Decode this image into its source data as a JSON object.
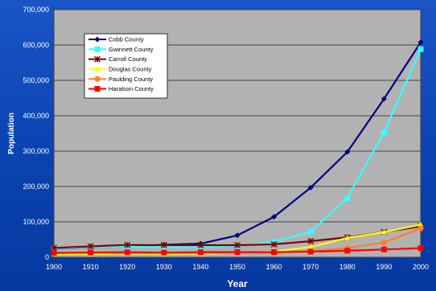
{
  "chart_data": {
    "type": "line",
    "title": "",
    "xlabel": "Year",
    "ylabel": "Population",
    "x": [
      1900,
      1910,
      1920,
      1930,
      1940,
      1950,
      1960,
      1970,
      1980,
      1990,
      2000
    ],
    "ylim": [
      0,
      700000
    ],
    "yticks": [
      0,
      100000,
      200000,
      300000,
      400000,
      500000,
      600000,
      700000
    ],
    "ytick_labels": [
      "0",
      "100,000",
      "200,000",
      "300,000",
      "400,000",
      "500,000",
      "600,000",
      "700,000"
    ],
    "xtick_labels": [
      "1900",
      "1910",
      "1920",
      "1930",
      "1940",
      "1950",
      "1960",
      "1970",
      "1980",
      "1990",
      "2000"
    ],
    "grid": true,
    "legend_position": "top-left",
    "series": [
      {
        "name": "Cobb County",
        "color": "#000080",
        "marker": "diamond",
        "values": [
          24664,
          28397,
          30437,
          35408,
          38272,
          61830,
          114174,
          196793,
          297718,
          447745,
          607751
        ]
      },
      {
        "name": "Gwinnett County",
        "color": "#33ffff",
        "marker": "square",
        "values": [
          25585,
          28824,
          30327,
          27853,
          29087,
          32320,
          43541,
          72349,
          166903,
          352910,
          588448
        ]
      },
      {
        "name": "Carroll County",
        "color": "#800000",
        "marker": "star",
        "values": [
          26576,
          30855,
          34752,
          34272,
          34156,
          34112,
          36451,
          45404,
          56346,
          71422,
          87268
        ]
      },
      {
        "name": "Douglas County",
        "color": "#ffff00",
        "marker": "triangle",
        "values": [
          8745,
          8953,
          10477,
          9461,
          10053,
          12173,
          16741,
          28659,
          54573,
          71120,
          92174
        ]
      },
      {
        "name": "Paulding County",
        "color": "#ff7f27",
        "marker": "circle",
        "values": [
          12969,
          12544,
          11948,
          12327,
          12832,
          11752,
          13101,
          17520,
          26110,
          41611,
          81678
        ]
      },
      {
        "name": "Haralson County",
        "color": "#ff0000",
        "marker": "square",
        "values": [
          11922,
          13514,
          14236,
          13263,
          14377,
          14663,
          14543,
          15927,
          18422,
          21966,
          25690
        ]
      }
    ]
  }
}
